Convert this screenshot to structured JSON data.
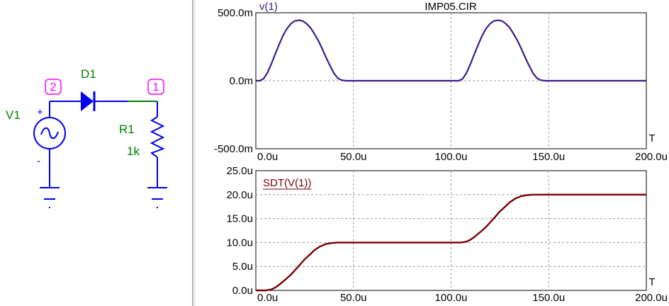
{
  "schematic": {
    "source_label": "V1",
    "source_plus": "+",
    "source_minus": "-",
    "diode_label": "D1",
    "resistor_label": "R1",
    "resistor_value": "1k",
    "node_left": "2",
    "node_right": "1"
  },
  "colors": {
    "wire": "#0000ee",
    "part_label": "#008000",
    "node_label": "#ff00ff",
    "trace_top": "#3c1a8c",
    "trace_bottom": "#7a0000",
    "grid": "#9a9a9a",
    "divider": "#b0b0b0"
  },
  "chart_data": [
    {
      "type": "line",
      "title": "IMP05.CIR",
      "trace_label": "v(1)",
      "x_unit_label": "T",
      "xlim": [
        0,
        200
      ],
      "ylim": [
        -500,
        500
      ],
      "x_tick_labels": [
        "0.0u",
        "50.0u",
        "100.0u",
        "150.0u",
        "200.0u"
      ],
      "x_ticks": [
        0,
        50,
        100,
        150,
        200
      ],
      "y_tick_labels": [
        "500.0m",
        "0.0m",
        "-500.0m"
      ],
      "y_ticks": [
        500,
        0,
        -500
      ],
      "grid": true,
      "series": [
        {
          "name": "v(1)",
          "x": [
            0,
            2,
            4,
            6,
            8,
            10,
            12,
            14,
            16,
            18,
            20,
            22,
            24,
            26,
            28,
            30,
            32,
            34,
            36,
            38,
            40,
            42,
            44,
            46,
            48,
            50,
            60,
            70,
            80,
            90,
            100,
            102,
            104,
            106,
            108,
            110,
            112,
            114,
            116,
            118,
            120,
            122,
            124,
            126,
            128,
            130,
            132,
            134,
            136,
            138,
            140,
            142,
            144,
            146,
            148,
            150,
            160,
            170,
            180,
            190,
            200
          ],
          "y": [
            0,
            0,
            15,
            60,
            125,
            200,
            270,
            335,
            385,
            420,
            440,
            445,
            440,
            420,
            390,
            345,
            295,
            235,
            170,
            110,
            55,
            18,
            4,
            0,
            0,
            0,
            0,
            0,
            0,
            0,
            0,
            0,
            0,
            15,
            60,
            125,
            200,
            270,
            335,
            385,
            420,
            440,
            445,
            440,
            420,
            390,
            345,
            295,
            235,
            170,
            110,
            55,
            18,
            4,
            0,
            0,
            0,
            0,
            0,
            0,
            0
          ]
        }
      ]
    },
    {
      "type": "line",
      "title": "",
      "trace_label": "SDT(V(1))",
      "x_unit_label": "T",
      "xlim": [
        0,
        200
      ],
      "ylim": [
        0,
        25
      ],
      "x_tick_labels": [
        "0.0u",
        "50.0u",
        "100.0u",
        "150.0u",
        "200.0u"
      ],
      "x_ticks": [
        0,
        50,
        100,
        150,
        200
      ],
      "y_tick_labels": [
        "25.0u",
        "20.0u",
        "15.0u",
        "10.0u",
        "5.0u",
        "0.0u"
      ],
      "y_ticks": [
        25,
        20,
        15,
        10,
        5,
        0
      ],
      "grid": true,
      "series": [
        {
          "name": "SDT(V(1))",
          "x": [
            0,
            5,
            8,
            10,
            12,
            15,
            18,
            20,
            22,
            25,
            28,
            30,
            33,
            36,
            39,
            42,
            45,
            50,
            60,
            70,
            80,
            90,
            100,
            105,
            108,
            110,
            112,
            115,
            118,
            120,
            122,
            125,
            128,
            130,
            133,
            136,
            139,
            142,
            145,
            150,
            160,
            170,
            180,
            190,
            200
          ],
          "y": [
            0,
            0,
            0.2,
            0.6,
            1.2,
            2.2,
            3.3,
            4.2,
            5.1,
            6.5,
            7.6,
            8.4,
            9.2,
            9.7,
            9.9,
            10,
            10,
            10,
            10,
            10,
            10,
            10,
            10,
            10,
            10.2,
            10.6,
            11.2,
            12.2,
            13.3,
            14.2,
            15.1,
            16.5,
            17.6,
            18.4,
            19.2,
            19.7,
            19.9,
            20,
            20,
            20,
            20,
            20,
            20,
            20,
            20
          ]
        }
      ]
    }
  ]
}
